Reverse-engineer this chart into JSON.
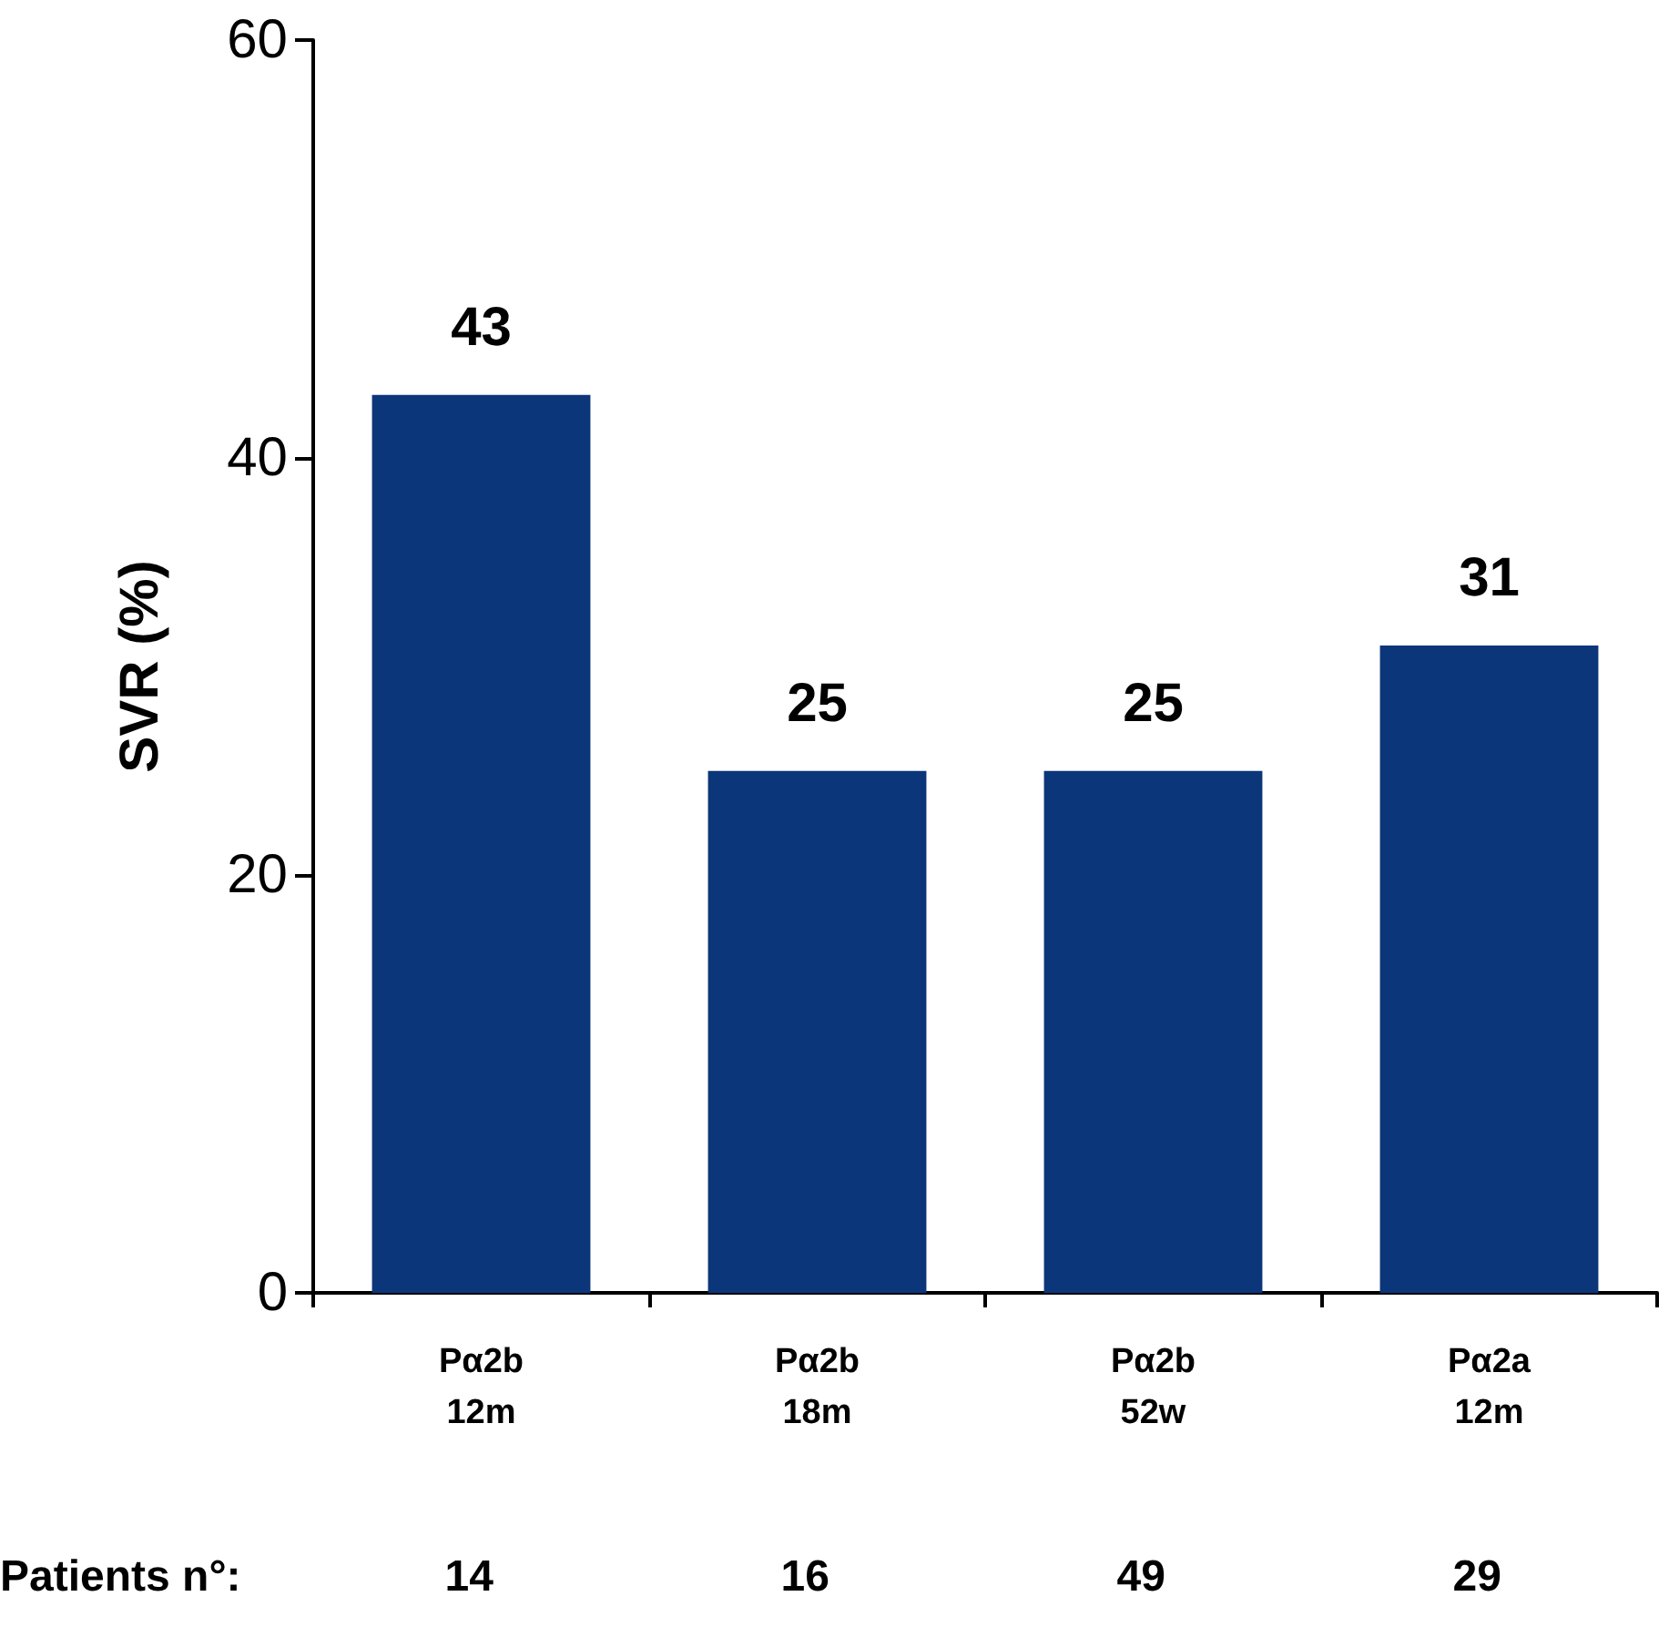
{
  "chart_data": {
    "type": "bar",
    "ylabel": "SVR (%)",
    "categories": [
      "Pα2b\n12m",
      "Pα2b\n18m",
      "Pα2b\n52w",
      "Pα2a\n12m"
    ],
    "values": [
      43,
      25,
      25,
      31
    ],
    "color": "#0c367a",
    "ylim": [
      0,
      60
    ],
    "yticks": [
      0,
      20,
      40,
      60
    ],
    "grid": false,
    "data_labels": true,
    "annotations": [
      "Patients n°:",
      "14",
      "16",
      "49",
      "29"
    ]
  }
}
